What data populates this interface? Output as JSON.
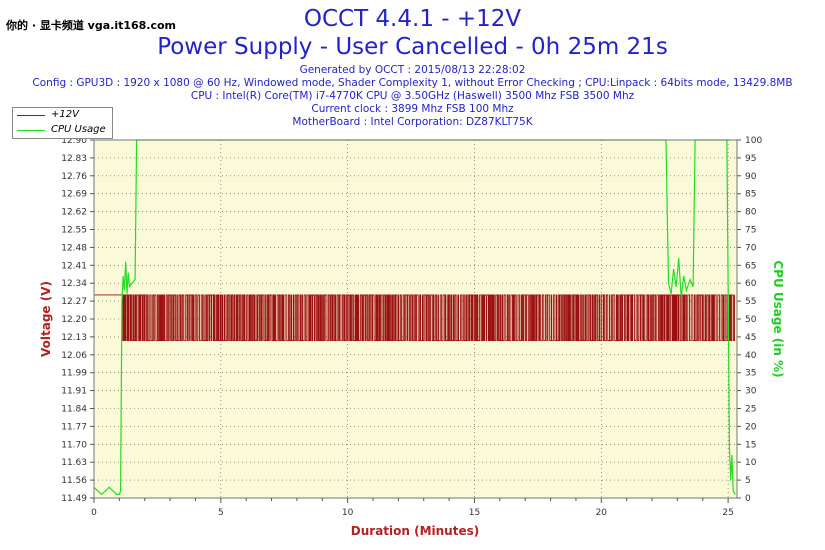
{
  "watermark": "你的 · 显卡频道 vga.it168.com",
  "title": "OCCT 4.4.1 - +12V",
  "subtitle": "Power Supply - User Cancelled - 0h 25m 21s",
  "info_lines": [
    "Generated by OCCT : 2015/08/13 22:28:02",
    "Config : GPU3D : 1920 x 1080 @ 60 Hz, Windowed mode, Shader Complexity 1, without Error Checking ; CPU:Linpack : 64bits mode, 13429.8MB",
    "CPU : Intel(R) Core(TM) i7-4770K CPU @ 3.50GHz (Haswell) 3500 Mhz FSB 3500 Mhz",
    "Current clock : 3899 Mhz FSB 100 Mhz",
    "MotherBoard : Intel Corporation: DZ87KLT75K"
  ],
  "colors": {
    "voltage": "#9b1010",
    "cpu": "#22dd22",
    "text": "#2323c8",
    "axis_label": "#b22222"
  },
  "chart_data": {
    "type": "line",
    "xlabel": "Duration (Minutes)",
    "ylabel_left": "Voltage (V)",
    "ylabel_right": "CPU Usage (in %)",
    "xlim": [
      0,
      25.35
    ],
    "ylim_left": [
      11.49,
      12.9
    ],
    "ylim_right": [
      0,
      100
    ],
    "x_ticks": [
      0,
      5,
      10,
      15,
      20,
      25
    ],
    "y_ticks_left": [
      "11.49",
      "11.56",
      "11.63",
      "11.70",
      "11.77",
      "11.84",
      "11.91",
      "11.99",
      "12.06",
      "12.13",
      "12.20",
      "12.27",
      "12.34",
      "12.41",
      "12.48",
      "12.55",
      "12.62",
      "12.69",
      "12.76",
      "12.83",
      "12.90"
    ],
    "y_ticks_right": [
      0,
      5,
      10,
      15,
      20,
      25,
      30,
      35,
      40,
      45,
      50,
      55,
      60,
      65,
      70,
      75,
      80,
      85,
      90,
      95,
      100
    ],
    "grid": true,
    "legend": "top-left",
    "series": [
      {
        "name": "+12V",
        "axis": "left",
        "style": "noisy-band",
        "segments": [
          {
            "x_start": 0.0,
            "x_end": 1.1,
            "values": [
              12.29
            ]
          },
          {
            "x_start": 1.1,
            "x_end": 25.25,
            "values": [
              12.29,
              12.11
            ]
          }
        ]
      },
      {
        "name": "CPU Usage",
        "axis": "right",
        "points": [
          [
            0,
            3
          ],
          [
            0.3,
            1
          ],
          [
            0.6,
            3
          ],
          [
            0.9,
            1
          ],
          [
            1.0,
            1
          ],
          [
            1.05,
            2
          ],
          [
            1.1,
            55
          ],
          [
            1.15,
            62
          ],
          [
            1.2,
            58
          ],
          [
            1.25,
            66
          ],
          [
            1.3,
            57
          ],
          [
            1.35,
            63
          ],
          [
            1.4,
            59
          ],
          [
            1.5,
            60
          ],
          [
            1.62,
            61
          ],
          [
            1.68,
            100
          ],
          [
            22.55,
            100
          ],
          [
            22.65,
            60
          ],
          [
            22.75,
            57
          ],
          [
            22.85,
            64
          ],
          [
            22.95,
            59
          ],
          [
            23.05,
            67
          ],
          [
            23.15,
            56
          ],
          [
            23.25,
            62
          ],
          [
            23.35,
            58
          ],
          [
            23.5,
            61
          ],
          [
            23.62,
            59
          ],
          [
            23.7,
            100
          ],
          [
            24.95,
            100
          ],
          [
            25.0,
            60
          ],
          [
            25.05,
            14
          ],
          [
            25.1,
            5
          ],
          [
            25.15,
            12
          ],
          [
            25.2,
            2
          ],
          [
            25.28,
            1
          ]
        ]
      }
    ]
  }
}
